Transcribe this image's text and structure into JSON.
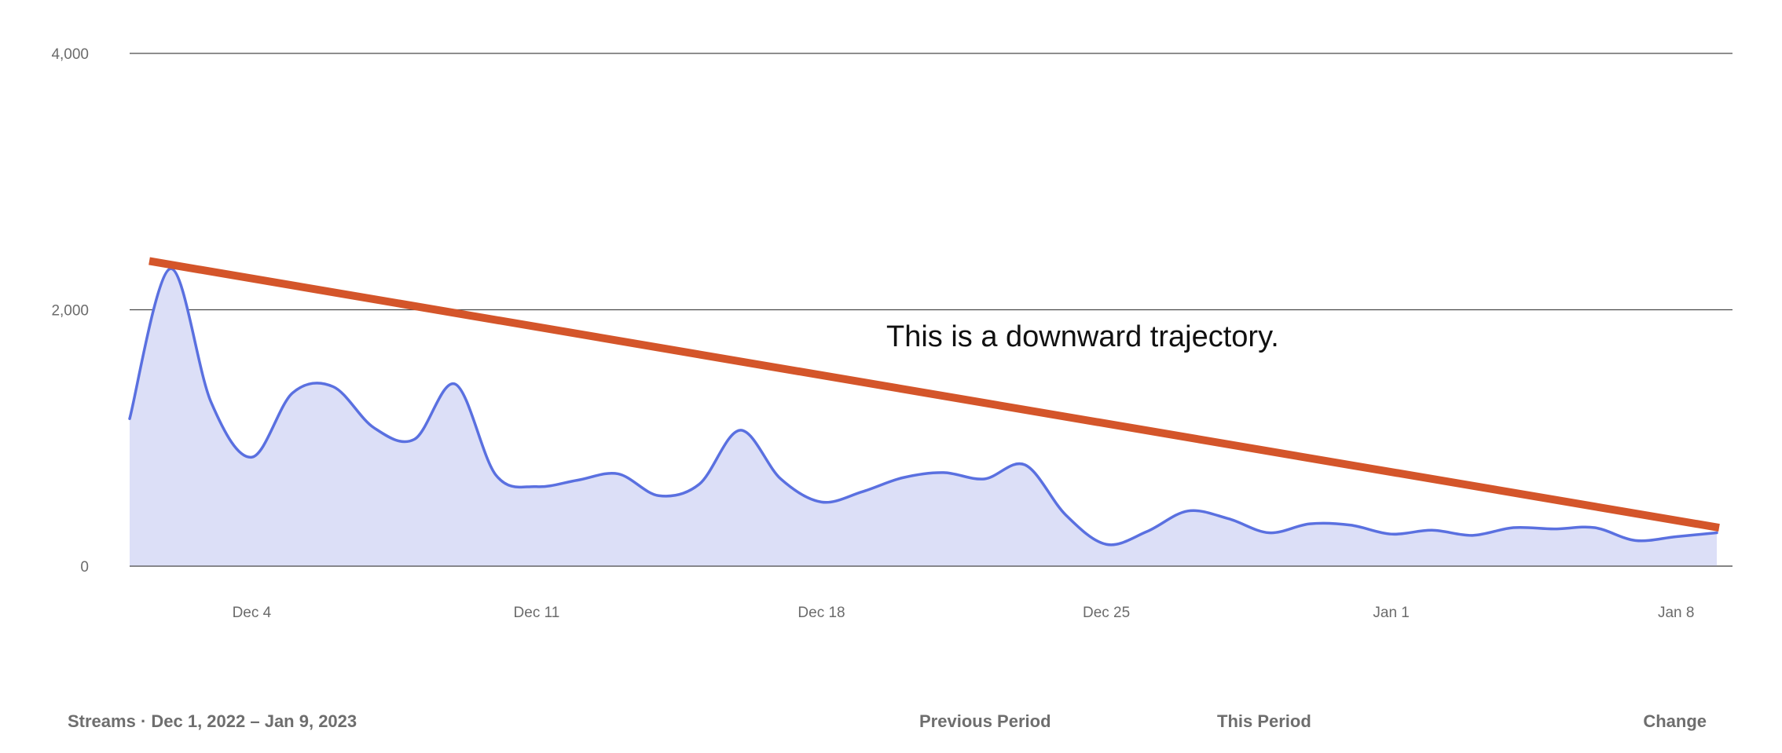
{
  "chart_data": {
    "type": "area",
    "title": "",
    "xlabel": "",
    "ylabel": "",
    "x": [
      "2022-12-01",
      "2022-12-02",
      "2022-12-03",
      "2022-12-04",
      "2022-12-05",
      "2022-12-06",
      "2022-12-07",
      "2022-12-08",
      "2022-12-09",
      "2022-12-10",
      "2022-12-11",
      "2022-12-12",
      "2022-12-13",
      "2022-12-14",
      "2022-12-15",
      "2022-12-16",
      "2022-12-17",
      "2022-12-18",
      "2022-12-19",
      "2022-12-20",
      "2022-12-21",
      "2022-12-22",
      "2022-12-23",
      "2022-12-24",
      "2022-12-25",
      "2022-12-26",
      "2022-12-27",
      "2022-12-28",
      "2022-12-29",
      "2022-12-30",
      "2022-12-31",
      "2023-01-01",
      "2023-01-02",
      "2023-01-03",
      "2023-01-04",
      "2023-01-05",
      "2023-01-06",
      "2023-01-07",
      "2023-01-08",
      "2023-01-09"
    ],
    "series": [
      {
        "values": [
          1150,
          2320,
          1280,
          850,
          1350,
          1400,
          1080,
          990,
          1420,
          710,
          620,
          670,
          720,
          550,
          640,
          1060,
          680,
          500,
          580,
          690,
          730,
          680,
          790,
          400,
          170,
          270,
          430,
          370,
          260,
          330,
          320,
          250,
          280,
          240,
          300,
          290,
          300,
          200,
          230,
          260
        ],
        "color": "#5a70e0",
        "fill": "#dcdff7"
      }
    ],
    "xticks": [
      {
        "value": "2022-12-04",
        "label": "Dec 4"
      },
      {
        "value": "2022-12-11",
        "label": "Dec 11"
      },
      {
        "value": "2022-12-18",
        "label": "Dec 18"
      },
      {
        "value": "2022-12-25",
        "label": "Dec 25"
      },
      {
        "value": "2023-01-01",
        "label": "Jan 1"
      },
      {
        "value": "2023-01-08",
        "label": "Jan 8"
      }
    ],
    "yticks": [
      {
        "value": 0,
        "label": "0"
      },
      {
        "value": 2000,
        "label": "2,000"
      },
      {
        "value": 4000,
        "label": "4,000"
      }
    ],
    "ylim": [
      0,
      4000
    ],
    "grid": true,
    "trend_line": {
      "start": {
        "x": "2022-12-01",
        "y": 2380
      },
      "end": {
        "x": "2023-01-09",
        "y": 300
      },
      "color": "#d4552a"
    },
    "annotation": {
      "text": "This is a downward trajectory.",
      "x": "2022-12-20",
      "y": 1780
    }
  },
  "footer": {
    "title": "Streams · Dec 1, 2022 – Jan 9, 2023",
    "previous_period": "Previous Period",
    "this_period": "This Period",
    "change": "Change"
  }
}
